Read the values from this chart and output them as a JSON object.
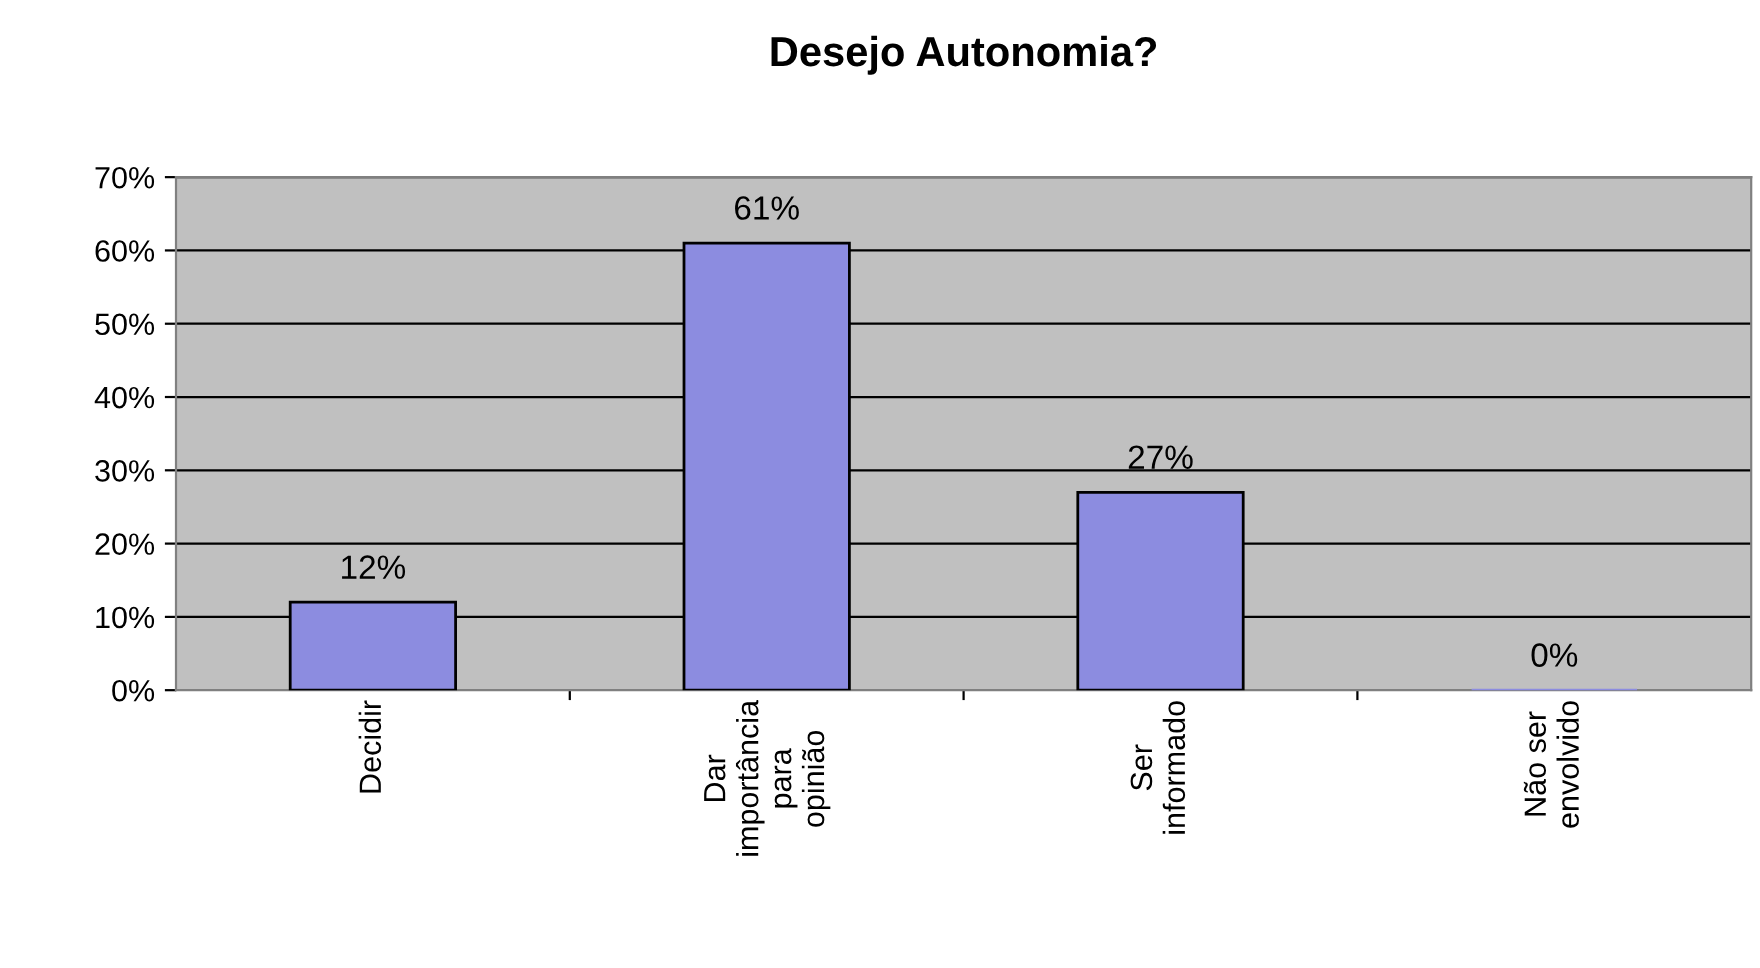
{
  "chart_data": {
    "type": "bar",
    "title": "Desejo Autonomia?",
    "categories": [
      "Decidir",
      "Dar\nimportância\npara\nopinião",
      "Ser\ninformado",
      "Não ser\nenvolvido"
    ],
    "values": [
      12,
      61,
      27,
      0
    ],
    "value_labels": [
      "12%",
      "61%",
      "27%",
      "0%"
    ],
    "color": "#8c8ce0",
    "ylim": [
      0,
      70
    ],
    "yticks": [
      {
        "value": 0,
        "label": "0%"
      },
      {
        "value": 10,
        "label": "10%"
      },
      {
        "value": 20,
        "label": "20%"
      },
      {
        "value": 30,
        "label": "30%"
      },
      {
        "value": 40,
        "label": "40%"
      },
      {
        "value": 50,
        "label": "50%"
      },
      {
        "value": 60,
        "label": "60%"
      },
      {
        "value": 70,
        "label": "70%"
      }
    ],
    "grid": "y",
    "legend": false
  }
}
